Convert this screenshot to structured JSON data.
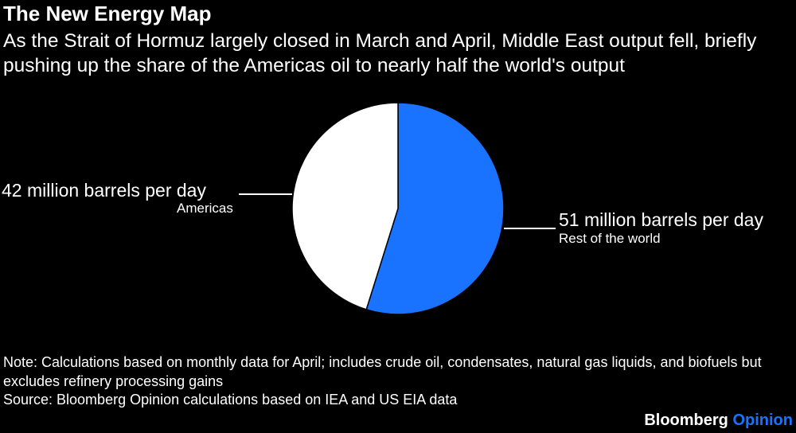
{
  "title": "The New Energy Map",
  "subtitle": "As the Strait of Hormuz largely closed in March and April, Middle East output fell, briefly pushing up the share of the Americas oil to nearly half the world's output",
  "chart_data": {
    "type": "pie",
    "categories": [
      "Americas",
      "Rest of the world"
    ],
    "values": [
      42,
      51
    ],
    "value_labels": [
      "42 million barrels per day",
      "51 million barrels per day"
    ],
    "unit": "million barrels per day",
    "colors": [
      "#ffffff",
      "#1a73ff"
    ],
    "slice_order": "clockwise from top: Rest of the world, then Americas",
    "legend": "none"
  },
  "note": "Note: Calculations based on monthly data for April; includes crude oil, condensates, natural gas liquids, and biofuels but excludes refinery processing gains",
  "source": "Source: Bloomberg Opinion calculations based on IEA and US EIA data",
  "brand": {
    "name": "Bloomberg",
    "suffix": "Opinion",
    "suffix_color": "#1a73ff"
  }
}
